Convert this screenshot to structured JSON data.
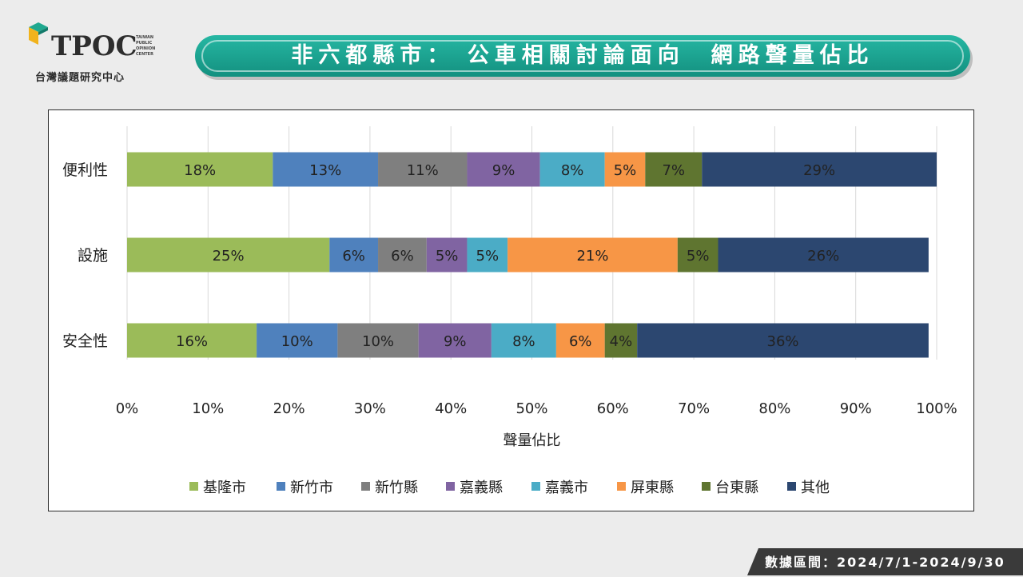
{
  "logo": {
    "wordmark": "TPOC",
    "tagline": "台灣議題研究中心",
    "tiny_text": [
      "TAIWAN",
      "PUBLIC",
      "OPINION",
      "CENTER"
    ]
  },
  "title": "非六都縣市： 公車相關討論面向  網路聲量佔比",
  "footer": "數據區間：2024/7/1-2024/9/30",
  "colors": {
    "banner": "#1ea592",
    "基隆市": "#9bbb59",
    "新竹市": "#4f81bd",
    "新竹縣": "#7f7f7f",
    "嘉義縣": "#8064a2",
    "嘉義市": "#4bacc6",
    "屏東縣": "#f79646",
    "台東縣": "#5f7530",
    "其他": "#2c4770"
  },
  "chart_data": {
    "type": "bar",
    "orientation": "horizontal",
    "stacked": true,
    "categories": [
      "便利性",
      "設施",
      "安全性"
    ],
    "series": [
      {
        "name": "基隆市",
        "values": [
          18,
          25,
          16
        ],
        "labels": [
          "18%",
          "25%",
          "16%"
        ]
      },
      {
        "name": "新竹市",
        "values": [
          13,
          6,
          10
        ],
        "labels": [
          "13%",
          "6%",
          "10%"
        ]
      },
      {
        "name": "新竹縣",
        "values": [
          11,
          6,
          10
        ],
        "labels": [
          "11%",
          "6%",
          "10%"
        ]
      },
      {
        "name": "嘉義縣",
        "values": [
          9,
          5,
          9
        ],
        "labels": [
          "9%",
          "5%",
          "9%"
        ]
      },
      {
        "name": "嘉義市",
        "values": [
          8,
          5,
          8
        ],
        "labels": [
          "8%",
          "5%",
          "8%"
        ]
      },
      {
        "name": "屏東縣",
        "values": [
          5,
          21,
          6
        ],
        "labels": [
          "5%",
          "21%",
          "6%"
        ]
      },
      {
        "name": "台東縣",
        "values": [
          7,
          5,
          4
        ],
        "labels": [
          "7%",
          "5%",
          "4%"
        ]
      },
      {
        "name": "其他",
        "values": [
          29,
          26,
          36
        ],
        "labels": [
          "29%",
          "26%",
          "36%"
        ]
      }
    ],
    "xlabel": "聲量佔比",
    "ylabel": "",
    "xlim": [
      0,
      100
    ],
    "x_ticks": [
      "0%",
      "10%",
      "20%",
      "30%",
      "40%",
      "50%",
      "60%",
      "70%",
      "80%",
      "90%",
      "100%"
    ],
    "grid": "vertical",
    "legend": "bottom"
  }
}
